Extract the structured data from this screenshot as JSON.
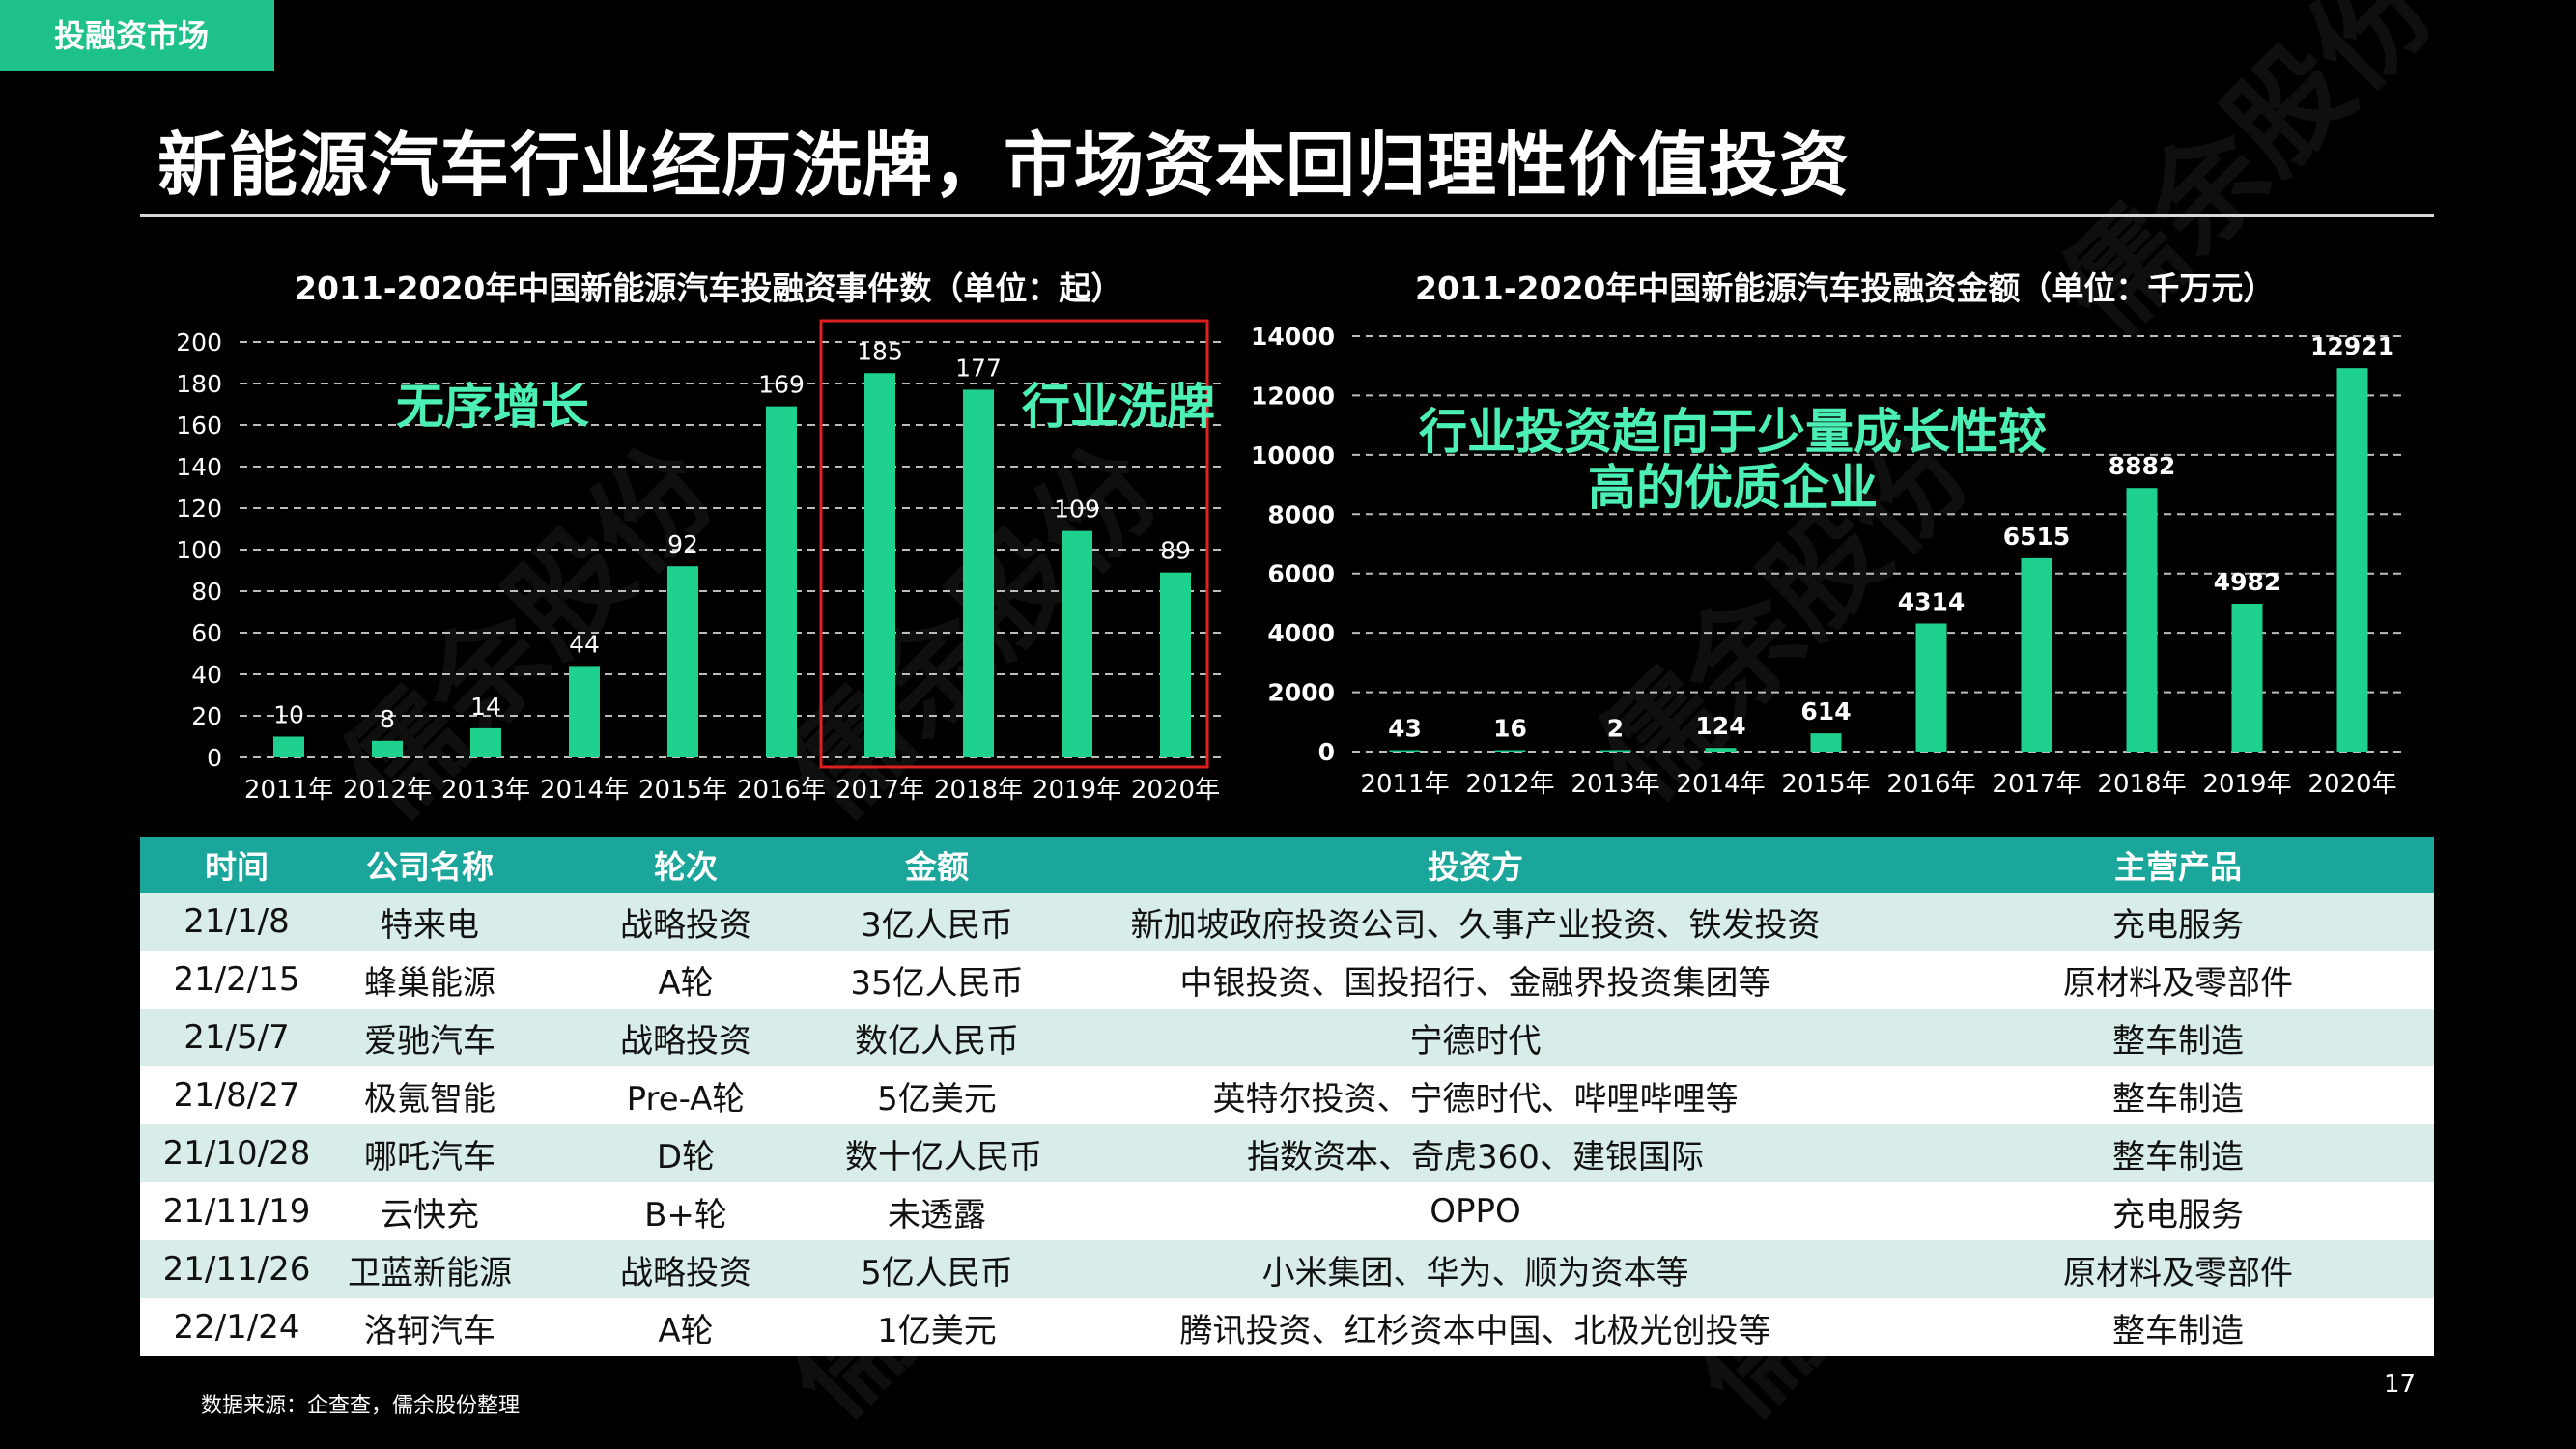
{
  "header": {
    "section_tag": "投融资市场",
    "title": "新能源汽车行业经历洗牌，市场资本回归理性价值投资"
  },
  "colors": {
    "accent": "#1fc18a",
    "bar": "#1fd18f",
    "annotation": "#4cf0b4",
    "table_header": "#1aa69a",
    "highlight_box": "#e0201e"
  },
  "chart_data": [
    {
      "type": "bar",
      "title": "2011-2020年中国新能源汽车投融资事件数（单位：起）",
      "categories": [
        "2011年",
        "2012年",
        "2013年",
        "2014年",
        "2015年",
        "2016年",
        "2017年",
        "2018年",
        "2019年",
        "2020年"
      ],
      "values": [
        10,
        8,
        14,
        44,
        92,
        169,
        185,
        177,
        109,
        89
      ],
      "ylim": [
        0,
        200
      ],
      "yticks": [
        0,
        20,
        40,
        60,
        80,
        100,
        120,
        140,
        160,
        180,
        200
      ],
      "grid": true,
      "annotations": [
        "无序增长",
        "行业洗牌"
      ],
      "highlight_categories": [
        "2017年",
        "2018年",
        "2019年",
        "2020年"
      ]
    },
    {
      "type": "bar",
      "title": "2011-2020年中国新能源汽车投融资金额（单位：千万元）",
      "categories": [
        "2011年",
        "2012年",
        "2013年",
        "2014年",
        "2015年",
        "2016年",
        "2017年",
        "2018年",
        "2019年",
        "2020年"
      ],
      "values": [
        43,
        16,
        2,
        124,
        614,
        4314,
        6515,
        8882,
        4982,
        12921
      ],
      "ylim": [
        0,
        14000
      ],
      "yticks": [
        0,
        2000,
        4000,
        6000,
        8000,
        10000,
        12000,
        14000
      ],
      "grid": true,
      "annotations": [
        "行业投资趋向于少量成长性较",
        "高的优质企业"
      ]
    }
  ],
  "table": {
    "headers": [
      "时间",
      "公司名称",
      "轮次",
      "金额",
      "投资方",
      "主营产品"
    ],
    "rows": [
      [
        "21/1/8",
        "特来电",
        "战略投资",
        "3亿人民币",
        "新加坡政府投资公司、久事产业投资、铁发投资",
        "充电服务"
      ],
      [
        "21/2/15",
        "蜂巢能源",
        "A轮",
        "35亿人民币",
        "中银投资、国投招行、金融界投资集团等",
        "原材料及零部件"
      ],
      [
        "21/5/7",
        "爱驰汽车",
        "战略投资",
        "数亿人民币",
        "宁德时代",
        "整车制造"
      ],
      [
        "21/8/27",
        "极氪智能",
        "Pre-A轮",
        "5亿美元",
        "英特尔投资、宁德时代、哔哩哔哩等",
        "整车制造"
      ],
      [
        "21/10/28",
        "哪吒汽车",
        "D轮",
        "数十亿人民币",
        "指数资本、奇虎360、建银国际",
        "整车制造"
      ],
      [
        "21/11/19",
        "云快充",
        "B+轮",
        "未透露",
        "OPPO",
        "充电服务"
      ],
      [
        "21/11/26",
        "卫蓝新能源",
        "战略投资",
        "5亿人民币",
        "小米集团、华为、顺为资本等",
        "原材料及零部件"
      ],
      [
        "22/1/24",
        "洛轲汽车",
        "A轮",
        "1亿美元",
        "腾讯投资、红杉资本中国、北极光创投等",
        "整车制造"
      ]
    ]
  },
  "footer": {
    "source": "数据来源：企查查，儒余股份整理",
    "page_number": "17"
  },
  "watermark": "儒余股份"
}
